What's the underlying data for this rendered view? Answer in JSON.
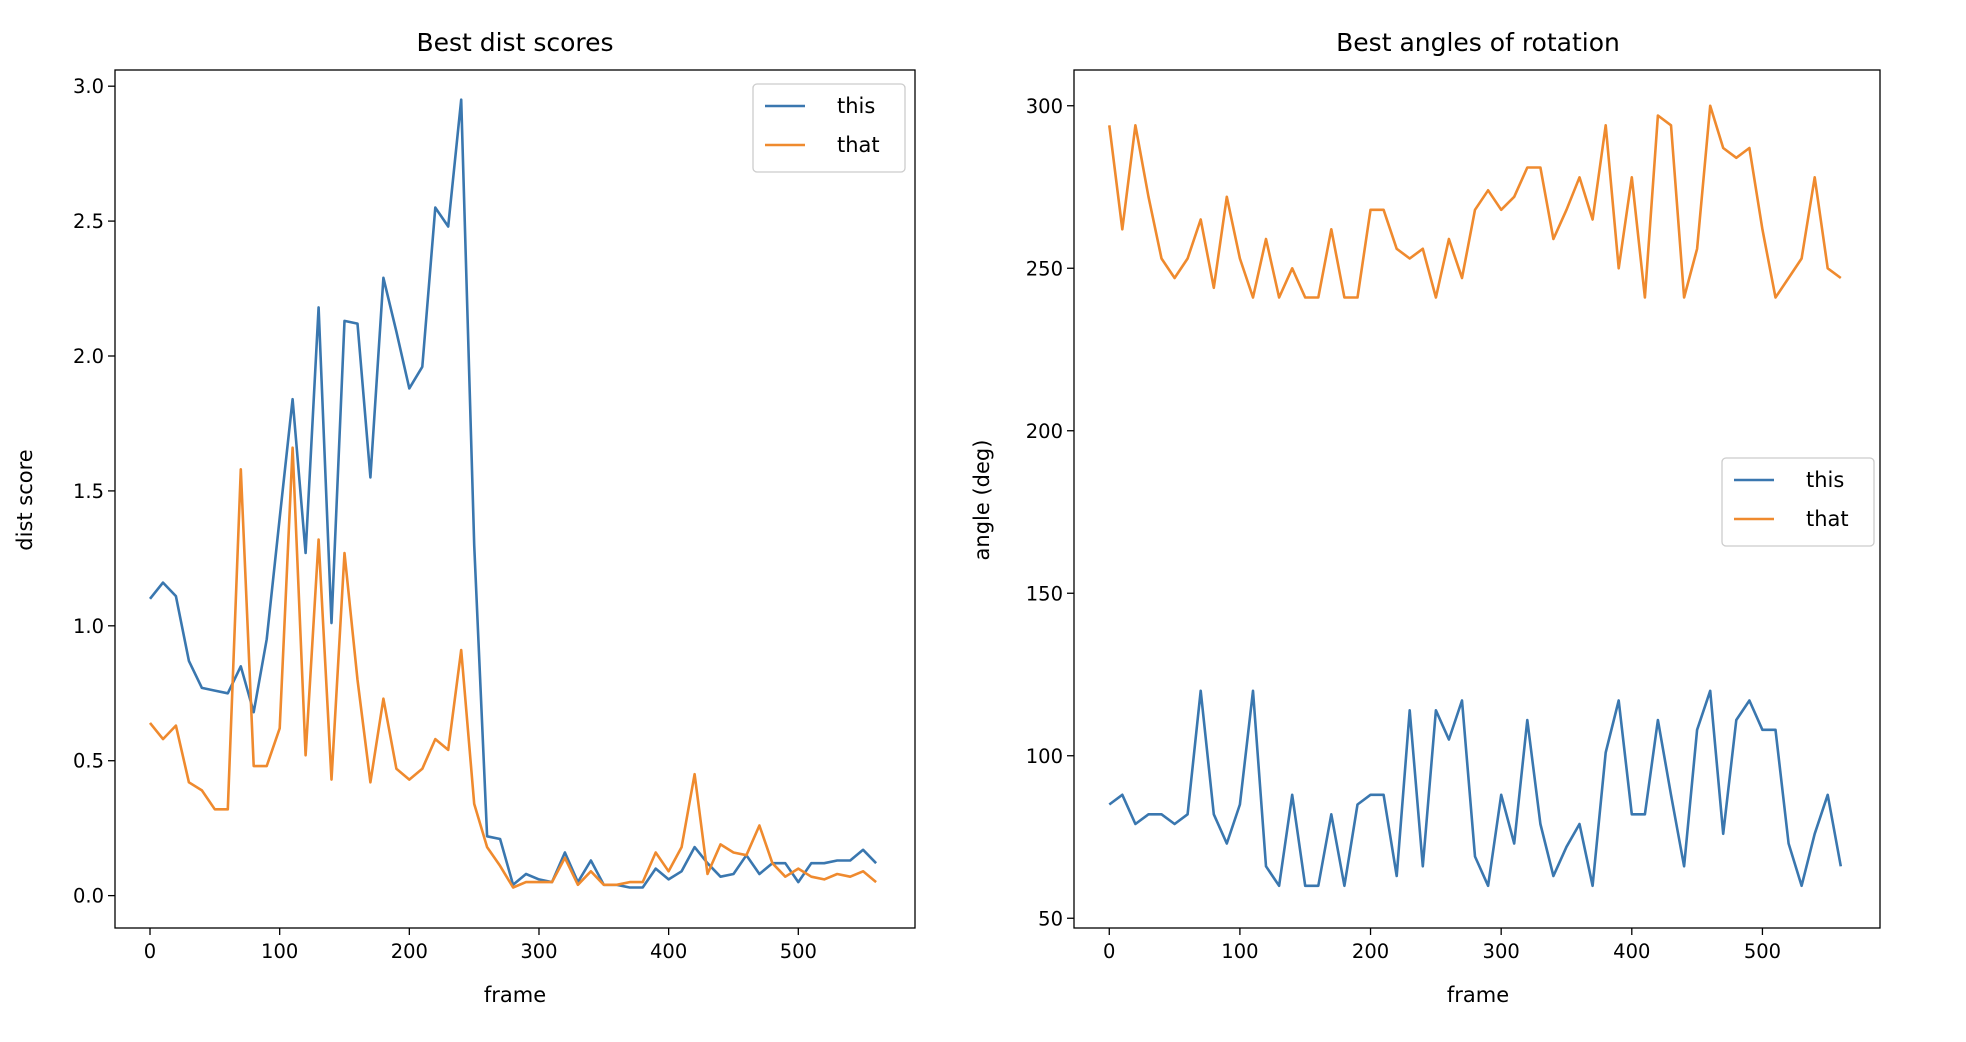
{
  "colors": {
    "this": "#3a77af",
    "that": "#ef8a2e"
  },
  "chart_data": [
    {
      "type": "line",
      "title": "Best dist scores",
      "xlabel": "frame",
      "ylabel": "dist score",
      "xlim": [
        -27,
        590
      ],
      "ylim": [
        -0.12,
        3.06
      ],
      "xticks": [
        0,
        100,
        200,
        300,
        400,
        500
      ],
      "xtick_labels": [
        "0",
        "100",
        "200",
        "300",
        "400",
        "500"
      ],
      "yticks": [
        0,
        0.5,
        1,
        1.5,
        2,
        2.5,
        3
      ],
      "ytick_labels": [
        "0.0",
        "0.5",
        "1.0",
        "1.5",
        "2.0",
        "2.5",
        "3.0"
      ],
      "legend": "top-right",
      "grid": false,
      "x": [
        0,
        10,
        20,
        30,
        40,
        50,
        60,
        70,
        80,
        90,
        100,
        110,
        120,
        130,
        140,
        150,
        160,
        170,
        180,
        190,
        200,
        210,
        220,
        230,
        240,
        250,
        260,
        270,
        280,
        290,
        300,
        310,
        320,
        330,
        340,
        350,
        360,
        370,
        380,
        390,
        400,
        410,
        420,
        430,
        440,
        450,
        460,
        470,
        480,
        490,
        500,
        510,
        520,
        530,
        540,
        550,
        560
      ],
      "series": [
        {
          "name": "this",
          "values": [
            1.1,
            1.16,
            1.11,
            0.87,
            0.77,
            0.76,
            0.75,
            0.85,
            0.68,
            0.95,
            1.4,
            1.84,
            1.27,
            2.18,
            1.01,
            2.13,
            2.12,
            1.55,
            2.29,
            2.09,
            1.88,
            1.96,
            2.55,
            2.48,
            2.95,
            1.3,
            0.22,
            0.21,
            0.04,
            0.08,
            0.06,
            0.05,
            0.16,
            0.05,
            0.13,
            0.04,
            0.04,
            0.03,
            0.03,
            0.1,
            0.06,
            0.09,
            0.18,
            0.12,
            0.07,
            0.08,
            0.15,
            0.08,
            0.12,
            0.12,
            0.05,
            0.12,
            0.12,
            0.13,
            0.13,
            0.17,
            0.12
          ]
        },
        {
          "name": "that",
          "values": [
            0.64,
            0.58,
            0.63,
            0.42,
            0.39,
            0.32,
            0.32,
            1.58,
            0.48,
            0.48,
            0.62,
            1.66,
            0.52,
            1.32,
            0.43,
            1.27,
            0.8,
            0.42,
            0.73,
            0.47,
            0.43,
            0.47,
            0.58,
            0.54,
            0.91,
            0.34,
            0.18,
            0.11,
            0.03,
            0.05,
            0.05,
            0.05,
            0.14,
            0.04,
            0.09,
            0.04,
            0.04,
            0.05,
            0.05,
            0.16,
            0.09,
            0.18,
            0.45,
            0.08,
            0.19,
            0.16,
            0.15,
            0.26,
            0.12,
            0.07,
            0.1,
            0.07,
            0.06,
            0.08,
            0.07,
            0.09,
            0.05
          ]
        }
      ]
    },
    {
      "type": "line",
      "title": "Best angles of rotation",
      "xlabel": "frame",
      "ylabel": "angle (deg)",
      "xlim": [
        -27,
        590
      ],
      "ylim": [
        47,
        311
      ],
      "xticks": [
        0,
        100,
        200,
        300,
        400,
        500
      ],
      "xtick_labels": [
        "0",
        "100",
        "200",
        "300",
        "400",
        "500"
      ],
      "yticks": [
        50,
        100,
        150,
        200,
        250,
        300
      ],
      "ytick_labels": [
        "50",
        "100",
        "150",
        "200",
        "250",
        "300"
      ],
      "legend": "center-right",
      "grid": false,
      "x": [
        0,
        10,
        20,
        30,
        40,
        50,
        60,
        70,
        80,
        90,
        100,
        110,
        120,
        130,
        140,
        150,
        160,
        170,
        180,
        190,
        200,
        210,
        220,
        230,
        240,
        250,
        260,
        270,
        280,
        290,
        300,
        310,
        320,
        330,
        340,
        350,
        360,
        370,
        380,
        390,
        400,
        410,
        420,
        430,
        440,
        450,
        460,
        470,
        480,
        490,
        500,
        510,
        520,
        530,
        540,
        550,
        560
      ],
      "series": [
        {
          "name": "this",
          "values": [
            85,
            88,
            79,
            82,
            82,
            79,
            82,
            120,
            82,
            73,
            85,
            120,
            66,
            60,
            88,
            60,
            60,
            82,
            60,
            85,
            88,
            88,
            63,
            114,
            66,
            114,
            105,
            117,
            69,
            60,
            88,
            73,
            111,
            79,
            63,
            72,
            79,
            60,
            101,
            117,
            82,
            82,
            111,
            88,
            66,
            108,
            120,
            76,
            111,
            117,
            108,
            108,
            73,
            60,
            76,
            88,
            66
          ]
        },
        {
          "name": "that",
          "values": [
            294,
            262,
            294,
            272,
            253,
            247,
            253,
            265,
            244,
            272,
            253,
            241,
            259,
            241,
            250,
            241,
            241,
            262,
            241,
            241,
            268,
            268,
            256,
            253,
            256,
            241,
            259,
            247,
            268,
            274,
            268,
            272,
            281,
            281,
            259,
            268,
            278,
            265,
            294,
            250,
            278,
            241,
            297,
            294,
            241,
            256,
            300,
            287,
            284,
            287,
            262,
            241,
            247,
            253,
            278,
            250,
            247
          ]
        }
      ]
    }
  ]
}
